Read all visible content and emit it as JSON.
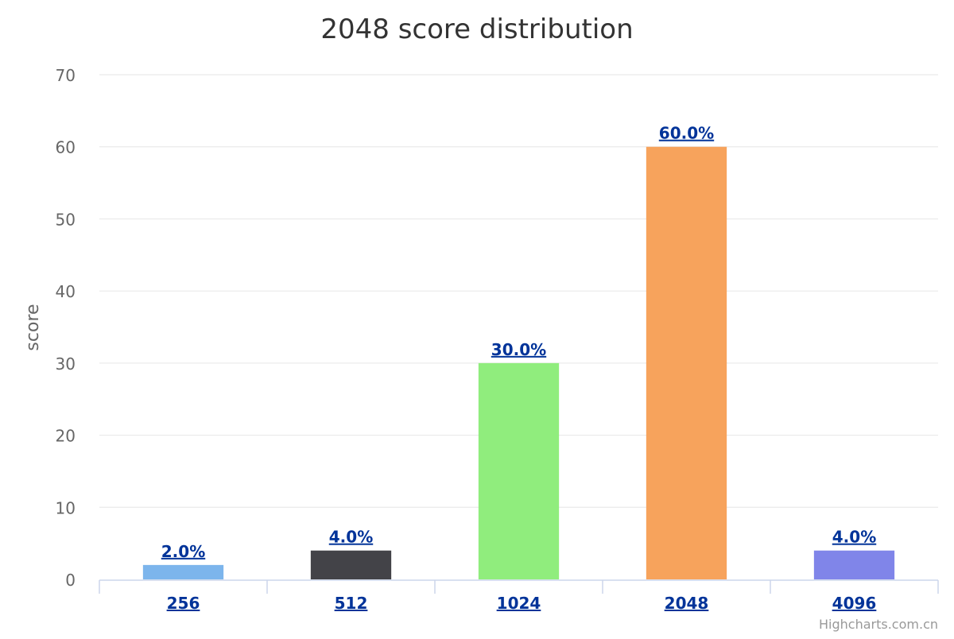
{
  "chart_data": {
    "type": "bar",
    "title": "2048 score distribution",
    "ylabel": "score",
    "xlabel": "",
    "categories": [
      "256",
      "512",
      "1024",
      "2048",
      "4096"
    ],
    "values": [
      2,
      4,
      30,
      60,
      4
    ],
    "data_labels": [
      "2.0%",
      "4.0%",
      "30.0%",
      "60.0%",
      "4.0%"
    ],
    "bar_colors": [
      "#7cb5ec",
      "#434348",
      "#90ed7d",
      "#f7a35c",
      "#8085e9"
    ],
    "ylim": [
      0,
      70
    ],
    "yticks": [
      "0",
      "10",
      "20",
      "30",
      "40",
      "50",
      "60",
      "70"
    ],
    "grid": true,
    "legend": "none"
  },
  "credits": "Highcharts.com.cn",
  "colors": {
    "grid": "#e6e6e6",
    "axis": "#ccd6eb",
    "link": "#003399"
  }
}
